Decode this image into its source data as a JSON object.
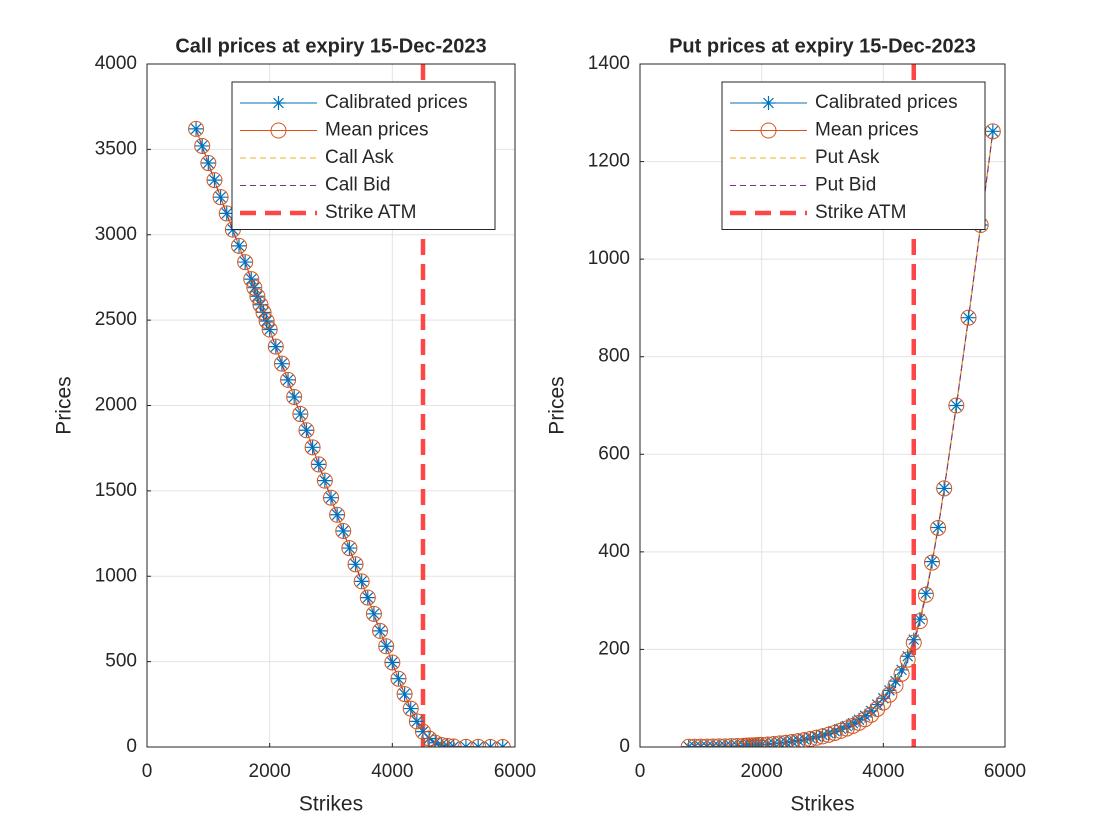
{
  "chart_data": [
    {
      "type": "line",
      "title": "Call prices at expiry 15-Dec-2023",
      "xlabel": "Strikes",
      "ylabel": "Prices",
      "x": [
        800,
        900,
        1000,
        1100,
        1200,
        1300,
        1400,
        1500,
        1600,
        1700,
        1750,
        1800,
        1850,
        1900,
        1950,
        2000,
        2100,
        2200,
        2300,
        2400,
        2500,
        2600,
        2700,
        2800,
        2900,
        3000,
        3100,
        3200,
        3300,
        3400,
        3500,
        3600,
        3700,
        3800,
        3900,
        4000,
        4100,
        4200,
        4300,
        4400,
        4500,
        4600,
        4700,
        4800,
        4900,
        5000,
        5200,
        5400,
        5600,
        5800
      ],
      "series": [
        {
          "name": "Calibrated prices",
          "color": "#0072BD",
          "marker": "star",
          "values": [
            3620,
            3520,
            3420,
            3320,
            3220,
            3125,
            3030,
            2935,
            2840,
            2740,
            2690,
            2640,
            2590,
            2545,
            2495,
            2445,
            2345,
            2245,
            2150,
            2050,
            1950,
            1855,
            1755,
            1655,
            1560,
            1460,
            1360,
            1265,
            1165,
            1070,
            970,
            875,
            780,
            680,
            590,
            495,
            400,
            310,
            225,
            150,
            90,
            50,
            25,
            12,
            6,
            3,
            1,
            0.5,
            0.2,
            0.1
          ]
        },
        {
          "name": "Mean prices",
          "color": "#D95319",
          "marker": "circle",
          "values": [
            3620,
            3520,
            3420,
            3320,
            3220,
            3125,
            3030,
            2935,
            2840,
            2740,
            2690,
            2640,
            2590,
            2545,
            2495,
            2445,
            2345,
            2245,
            2150,
            2050,
            1950,
            1855,
            1755,
            1655,
            1560,
            1460,
            1360,
            1265,
            1165,
            1070,
            970,
            875,
            780,
            680,
            590,
            495,
            400,
            310,
            225,
            150,
            90,
            50,
            25,
            12,
            6,
            3,
            1,
            0.5,
            0.2,
            0.1
          ]
        },
        {
          "name": "Call Ask",
          "color": "#EDB120",
          "dashed": true,
          "values": [
            3625,
            3525,
            3425,
            3325,
            3225,
            3130,
            3035,
            2940,
            2845,
            2745,
            2695,
            2645,
            2595,
            2550,
            2500,
            2450,
            2350,
            2250,
            2155,
            2055,
            1955,
            1860,
            1760,
            1660,
            1565,
            1465,
            1365,
            1270,
            1170,
            1075,
            975,
            880,
            785,
            685,
            595,
            500,
            405,
            315,
            230,
            155,
            94,
            53,
            27,
            13,
            7,
            3.5,
            1.2,
            0.6,
            0.3,
            0.2
          ]
        },
        {
          "name": "Call Bid",
          "color": "#7E2F8E",
          "dashed": true,
          "values": [
            3615,
            3515,
            3415,
            3315,
            3215,
            3120,
            3025,
            2930,
            2835,
            2735,
            2685,
            2635,
            2585,
            2540,
            2490,
            2440,
            2340,
            2240,
            2145,
            2045,
            1945,
            1850,
            1750,
            1650,
            1555,
            1455,
            1355,
            1260,
            1160,
            1065,
            965,
            870,
            775,
            675,
            585,
            490,
            395,
            305,
            220,
            145,
            86,
            47,
            23,
            11,
            5,
            2.5,
            0.8,
            0.4,
            0.1,
            0
          ]
        }
      ],
      "vline": {
        "name": "Strike ATM",
        "color": "#FF3333",
        "x": 4500
      },
      "xlim": [
        0,
        6000
      ],
      "xticks": [
        0,
        2000,
        4000,
        6000
      ],
      "ylim": [
        0,
        4000
      ],
      "yticks": [
        0,
        500,
        1000,
        1500,
        2000,
        2500,
        3000,
        3500,
        4000
      ],
      "grid": true,
      "legend": "northeast"
    },
    {
      "type": "line",
      "title": "Put prices at expiry 15-Dec-2023",
      "xlabel": "Strikes",
      "ylabel": "Prices",
      "x": [
        800,
        900,
        1000,
        1100,
        1200,
        1300,
        1400,
        1500,
        1600,
        1700,
        1750,
        1800,
        1850,
        1900,
        1950,
        2000,
        2100,
        2200,
        2300,
        2400,
        2500,
        2600,
        2700,
        2800,
        2900,
        3000,
        3100,
        3200,
        3300,
        3400,
        3500,
        3600,
        3700,
        3800,
        3900,
        4000,
        4100,
        4200,
        4300,
        4400,
        4500,
        4600,
        4700,
        4800,
        4900,
        5000,
        5200,
        5400,
        5600,
        5800
      ],
      "series": [
        {
          "name": "Calibrated prices",
          "color": "#0072BD",
          "marker": "star",
          "values": [
            0.5,
            0.6,
            0.7,
            0.8,
            1,
            1.2,
            1.5,
            1.8,
            2.2,
            2.7,
            3,
            3.3,
            3.6,
            4,
            4.4,
            4.8,
            5.8,
            7,
            8.3,
            9.8,
            11.5,
            13.5,
            15.8,
            18.4,
            21.3,
            24.6,
            28.3,
            32.5,
            37.3,
            42.7,
            48.8,
            55.8,
            64,
            74,
            87,
            100,
            116,
            135,
            158,
            186,
            220,
            262,
            315,
            380,
            450,
            530,
            700,
            880,
            1070,
            1262
          ]
        },
        {
          "name": "Mean prices",
          "color": "#D95319",
          "marker": "circle",
          "values": [
            0.5,
            0.6,
            0.7,
            0.8,
            1,
            1.2,
            1.4,
            1.7,
            2,
            2.4,
            2.7,
            3,
            3.3,
            3.6,
            4,
            4.4,
            5.2,
            6.2,
            7.4,
            8.7,
            10.2,
            12,
            14,
            16.3,
            18.9,
            21.8,
            25,
            28.8,
            33,
            37.8,
            43.2,
            49.5,
            57,
            66,
            78,
            91,
            107,
            126,
            150,
            179,
            214,
            258,
            312,
            378,
            449,
            530,
            700,
            880,
            1070,
            1262
          ]
        },
        {
          "name": "Put Ask",
          "color": "#EDB120",
          "dashed": true,
          "values": [
            0.6,
            0.7,
            0.8,
            0.9,
            1.1,
            1.3,
            1.6,
            1.9,
            2.3,
            2.8,
            3.1,
            3.4,
            3.8,
            4.2,
            4.6,
            5,
            6,
            7.2,
            8.6,
            10.1,
            11.9,
            13.9,
            16.2,
            18.9,
            21.9,
            25.2,
            29,
            33.3,
            38.2,
            43.7,
            49.9,
            57,
            65.5,
            75.5,
            88.5,
            102,
            118,
            137,
            160,
            188,
            222,
            264,
            317,
            382,
            452,
            532,
            702,
            882,
            1072,
            1264
          ]
        },
        {
          "name": "Put Bid",
          "color": "#7E2F8E",
          "dashed": true,
          "values": [
            0.4,
            0.5,
            0.6,
            0.7,
            0.9,
            1.1,
            1.3,
            1.6,
            1.9,
            2.3,
            2.6,
            2.9,
            3.2,
            3.5,
            3.9,
            4.2,
            5,
            6,
            7.1,
            8.4,
            9.8,
            11.6,
            13.6,
            15.9,
            18.5,
            21.4,
            24.6,
            28.3,
            32.5,
            37.2,
            42.6,
            48.8,
            56,
            65,
            76,
            89,
            105,
            124,
            148,
            177,
            212,
            256,
            310,
            376,
            447,
            528,
            698,
            878,
            1068,
            1260
          ]
        }
      ],
      "vline": {
        "name": "Strike ATM",
        "color": "#FF3333",
        "x": 4500
      },
      "xlim": [
        0,
        6000
      ],
      "xticks": [
        0,
        2000,
        4000,
        6000
      ],
      "ylim": [
        0,
        1400
      ],
      "yticks": [
        0,
        200,
        400,
        600,
        800,
        1000,
        1200,
        1400
      ],
      "grid": true,
      "legend": "northeast"
    }
  ]
}
